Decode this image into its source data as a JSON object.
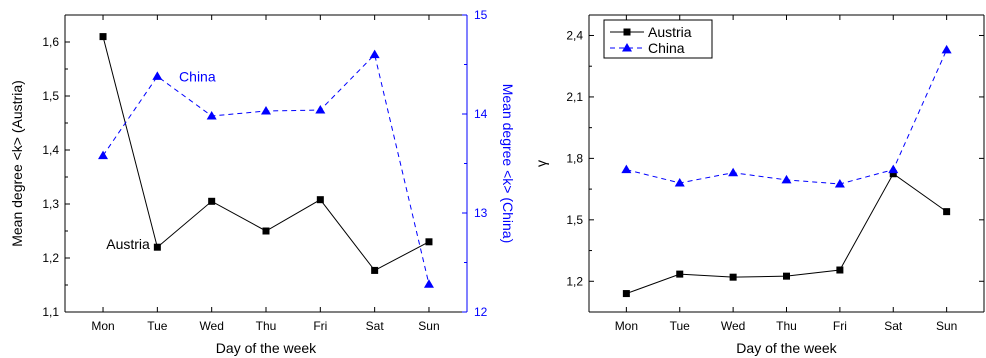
{
  "chart_data": [
    {
      "type": "line",
      "categories": [
        "Mon",
        "Tue",
        "Wed",
        "Thu",
        "Fri",
        "Sat",
        "Sun"
      ],
      "xlabel": "Day of the week",
      "ylabel": "Mean degree <k> (Austria)",
      "y2label": "Mean degree <k> (China)",
      "ylim": [
        1.1,
        1.65
      ],
      "y2lim": [
        12,
        15
      ],
      "yticks": [
        "1,1",
        "1,2",
        "1,3",
        "1,4",
        "1,5",
        "1,6"
      ],
      "y2ticks": [
        "12",
        "13",
        "14",
        "15"
      ],
      "grid": false,
      "series": [
        {
          "name": "Austria",
          "axis": "left",
          "color": "#000000",
          "line_style": "solid",
          "marker": "square",
          "values": [
            1.61,
            1.22,
            1.305,
            1.25,
            1.308,
            1.177,
            1.23
          ]
        },
        {
          "name": "China",
          "axis": "right",
          "color": "#0000ff",
          "line_style": "dashed",
          "marker": "triangle",
          "values": [
            13.58,
            14.38,
            13.98,
            14.03,
            14.04,
            14.6,
            12.28
          ]
        }
      ]
    },
    {
      "type": "line",
      "categories": [
        "Mon",
        "Tue",
        "Wed",
        "Thu",
        "Fri",
        "Sat",
        "Sun"
      ],
      "xlabel": "Day of the week",
      "ylabel": "γ",
      "ylim": [
        1.05,
        2.5
      ],
      "yticks": [
        "1,2",
        "1,5",
        "1,8",
        "2,1",
        "2,4"
      ],
      "grid": false,
      "legend": "top-left",
      "series": [
        {
          "name": "Austria",
          "color": "#000000",
          "line_style": "solid",
          "marker": "square",
          "values": [
            1.14,
            1.235,
            1.22,
            1.225,
            1.255,
            1.725,
            1.54
          ]
        },
        {
          "name": "China",
          "color": "#0000ff",
          "line_style": "dashed",
          "marker": "triangle",
          "values": [
            1.745,
            1.68,
            1.73,
            1.695,
            1.675,
            1.745,
            2.33
          ]
        }
      ]
    }
  ]
}
